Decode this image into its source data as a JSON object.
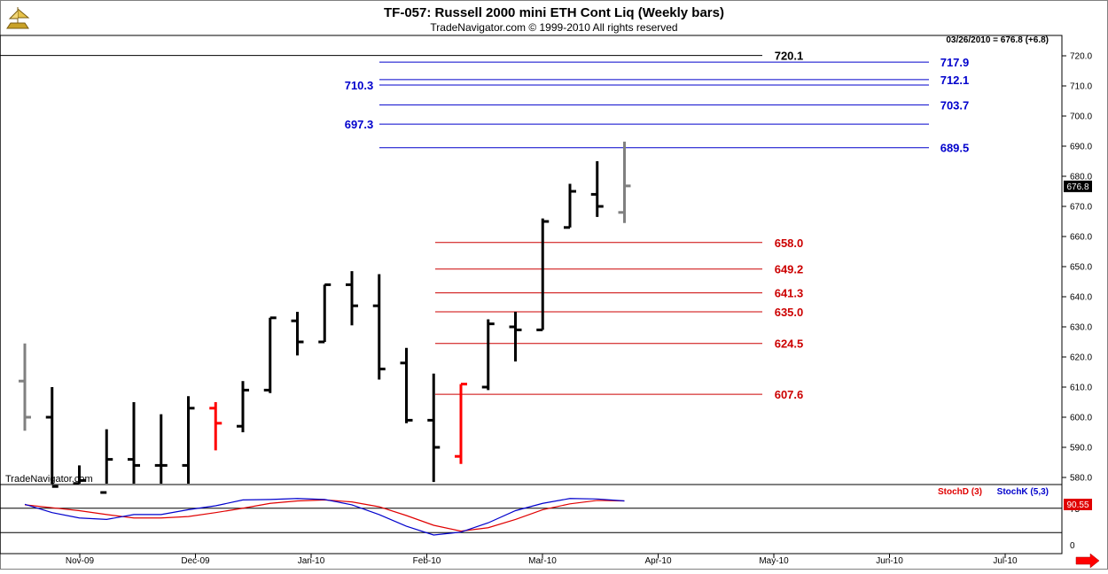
{
  "header": {
    "title": "TF-057:  Russell 2000 mini ETH Cont Liq  (Weekly bars)",
    "copyright": "TradeNavigator.com © 1999-2010 All rights reserved",
    "quote": "03/26/2010 = 676.8 (+6.8)",
    "watermark": "TradeNavigator.com"
  },
  "colors": {
    "bar": "#000000",
    "bar_gray": "#808080",
    "bar_red": "#ff0000",
    "blue_level": "#0000cc",
    "red_level": "#cc0000",
    "stoch_d": "#e00000",
    "stoch_k": "#0000cc"
  },
  "chart_data": [
    {
      "type": "ohlc",
      "title": "TF-057:  Russell 2000 mini ETH Cont Liq  (Weekly bars)",
      "ylim": [
        576,
        724
      ],
      "y_ticks": [
        "580.0",
        "590.0",
        "600.0",
        "610.0",
        "620.0",
        "630.0",
        "640.0",
        "650.0",
        "660.0",
        "670.0",
        "680.0",
        "690.0",
        "700.0",
        "710.0",
        "720.0"
      ],
      "x_ticks": [
        "Nov-09",
        "Dec-09",
        "Jan-10",
        "Feb-10",
        "Mar-10",
        "Apr-10",
        "May-10",
        "Jun-10",
        "Jul-10"
      ],
      "last_price_label": "676.8",
      "bars": [
        {
          "date": "2009-10-02",
          "o": 612.0,
          "h": 624.5,
          "l": 595.5,
          "c": 600.0,
          "color": "gray"
        },
        {
          "date": "2009-10-09",
          "o": 600.0,
          "h": 610.0,
          "l": 576.0,
          "c": 577.0,
          "color": "black"
        },
        {
          "date": "2009-10-16",
          "o": 578.0,
          "h": 584.0,
          "l": 576.0,
          "c": 579.0,
          "color": "black"
        },
        {
          "date": "2009-10-23",
          "o": 575.0,
          "h": 596.0,
          "l": 576.0,
          "c": 586.0,
          "color": "black"
        },
        {
          "date": "2009-10-30",
          "o": 586.0,
          "h": 605.0,
          "l": 576.0,
          "c": 584.0,
          "color": "black"
        },
        {
          "date": "2009-11-06",
          "o": 584.0,
          "h": 601.0,
          "l": 576.0,
          "c": 584.0,
          "color": "black"
        },
        {
          "date": "2009-11-13",
          "o": 584.0,
          "h": 607.0,
          "l": 576.0,
          "c": 603.0,
          "color": "black"
        },
        {
          "date": "2009-11-20",
          "o": 603.0,
          "h": 605.0,
          "l": 589.0,
          "c": 598.0,
          "color": "red"
        },
        {
          "date": "2009-11-27",
          "o": 597.0,
          "h": 612.0,
          "l": 595.0,
          "c": 609.0,
          "color": "black"
        },
        {
          "date": "2009-12-04",
          "o": 609.0,
          "h": 633.0,
          "l": 608.0,
          "c": 633.0,
          "color": "black"
        },
        {
          "date": "2009-12-11",
          "o": 632.0,
          "h": 635.0,
          "l": 620.5,
          "c": 625.0,
          "color": "black"
        },
        {
          "date": "2009-12-18",
          "o": 625.0,
          "h": 644.0,
          "l": 625.0,
          "c": 644.0,
          "color": "black"
        },
        {
          "date": "2009-12-25",
          "o": 644.0,
          "h": 648.5,
          "l": 630.5,
          "c": 637.0,
          "color": "black"
        },
        {
          "date": "2010-01-01",
          "o": 637.0,
          "h": 647.5,
          "l": 612.5,
          "c": 616.0,
          "color": "black"
        },
        {
          "date": "2010-01-08",
          "o": 618.0,
          "h": 623.0,
          "l": 598.0,
          "c": 599.0,
          "color": "black"
        },
        {
          "date": "2010-01-15",
          "o": 599.0,
          "h": 614.5,
          "l": 578.5,
          "c": 590.0,
          "color": "black"
        },
        {
          "date": "2010-01-22",
          "o": 587.0,
          "h": 611.0,
          "l": 584.5,
          "c": 611.0,
          "color": "red"
        },
        {
          "date": "2010-01-29",
          "o": 610.0,
          "h": 632.5,
          "l": 609.0,
          "c": 631.0,
          "color": "black"
        },
        {
          "date": "2010-02-05",
          "o": 630.0,
          "h": 635.0,
          "l": 618.5,
          "c": 629.0,
          "color": "black"
        },
        {
          "date": "2010-02-12",
          "o": 629.0,
          "h": 666.0,
          "l": 629.0,
          "c": 665.0,
          "color": "black"
        },
        {
          "date": "2010-02-19",
          "o": 663.0,
          "h": 677.5,
          "l": 663.0,
          "c": 675.0,
          "color": "black"
        },
        {
          "date": "2010-02-26",
          "o": 674.0,
          "h": 685.0,
          "l": 666.5,
          "c": 670.0,
          "color": "black"
        },
        {
          "date": "2010-03-05",
          "o": 668.0,
          "h": 691.5,
          "l": 664.5,
          "c": 676.8,
          "color": "gray"
        }
      ],
      "levels": [
        {
          "value": 720.1,
          "label": "720.1",
          "color": "black",
          "label_side": "mid"
        },
        {
          "value": 717.9,
          "label": "717.9",
          "color": "blue",
          "label_side": "right"
        },
        {
          "value": 712.1,
          "label": "712.1",
          "color": "blue",
          "label_side": "right"
        },
        {
          "value": 710.3,
          "label": "710.3",
          "color": "blue",
          "label_side": "left"
        },
        {
          "value": 703.7,
          "label": "703.7",
          "color": "blue",
          "label_side": "right"
        },
        {
          "value": 697.3,
          "label": "697.3",
          "color": "blue",
          "label_side": "left"
        },
        {
          "value": 689.5,
          "label": "689.5",
          "color": "blue",
          "label_side": "right"
        },
        {
          "value": 658.0,
          "label": "658.0",
          "color": "red",
          "label_side": "mid"
        },
        {
          "value": 649.2,
          "label": "649.2",
          "color": "red",
          "label_side": "mid"
        },
        {
          "value": 641.3,
          "label": "641.3",
          "color": "red",
          "label_side": "mid"
        },
        {
          "value": 635.0,
          "label": "635.0",
          "color": "red",
          "label_side": "mid"
        },
        {
          "value": 624.5,
          "label": "624.5",
          "color": "red",
          "label_side": "mid"
        },
        {
          "value": 607.6,
          "label": "607.6",
          "color": "red",
          "label_side": "mid"
        }
      ]
    },
    {
      "type": "line",
      "title": "",
      "ylim": [
        0,
        100
      ],
      "y_ticks": [
        "0",
        "75"
      ],
      "reference_lines": [
        75,
        25
      ],
      "last_value_label": "90.55",
      "series": [
        {
          "name": "StochD (3)",
          "color": "red",
          "values": [
            82,
            76,
            70,
            62,
            55,
            55,
            58,
            66,
            75,
            85,
            90,
            92,
            88,
            78,
            60,
            40,
            28,
            35,
            52,
            72,
            84,
            91,
            90
          ]
        },
        {
          "name": "StochK (5,3)",
          "color": "blue",
          "values": [
            83,
            66,
            55,
            52,
            62,
            62,
            72,
            80,
            92,
            93,
            95,
            93,
            82,
            62,
            38,
            20,
            26,
            45,
            70,
            85,
            95,
            94,
            90
          ]
        }
      ]
    }
  ]
}
